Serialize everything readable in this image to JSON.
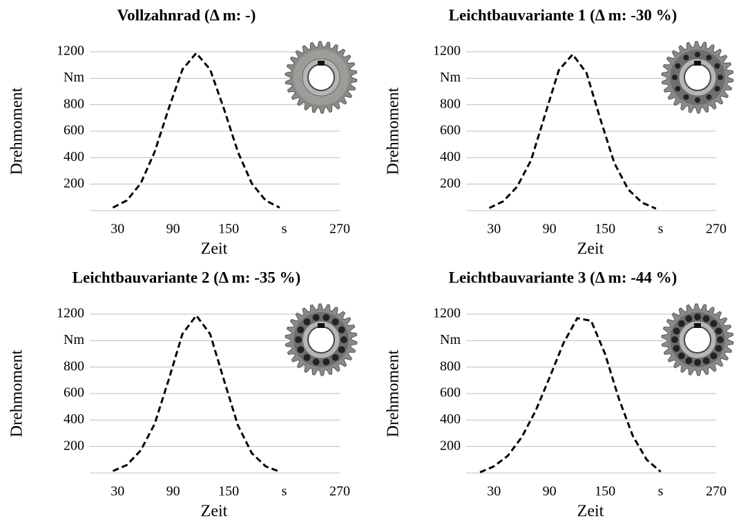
{
  "chart_data": [
    {
      "type": "line",
      "title": "Vollzahnrad (Δ m: -)",
      "xlabel": "Zeit",
      "ylabel": "Drehmoment",
      "xlim": [
        0,
        270
      ],
      "ylim": [
        0,
        1200
      ],
      "xticks": [
        30,
        90,
        150,
        {
          "value": 210,
          "label": "s"
        },
        270
      ],
      "yticks": [
        200,
        400,
        600,
        800,
        {
          "value": 1000,
          "label": "Nm"
        },
        1200
      ],
      "grid": true,
      "color": "#000000",
      "line_style": "dashed",
      "x": [
        25,
        40,
        55,
        70,
        85,
        100,
        115,
        130,
        145,
        160,
        175,
        190,
        205
      ],
      "values": [
        23,
        76,
        205,
        443,
        767,
        1066,
        1190,
        1066,
        767,
        443,
        205,
        76,
        23
      ]
    },
    {
      "type": "line",
      "title": "Leichtbauvariante 1 (Δ m: -30 %)",
      "xlabel": "Zeit",
      "ylabel": "Drehmoment",
      "xlim": [
        0,
        270
      ],
      "ylim": [
        0,
        1200
      ],
      "xticks": [
        30,
        90,
        150,
        {
          "value": 210,
          "label": "s"
        },
        270
      ],
      "yticks": [
        200,
        400,
        600,
        800,
        {
          "value": 1000,
          "label": "Nm"
        },
        1200
      ],
      "grid": true,
      "color": "#000000",
      "line_style": "dashed",
      "x": [
        25,
        40,
        55,
        70,
        85,
        100,
        115,
        130,
        145,
        160,
        175,
        190,
        205
      ],
      "values": [
        20,
        70,
        180,
        380,
        720,
        1060,
        1180,
        1040,
        690,
        360,
        160,
        60,
        15
      ]
    },
    {
      "type": "line",
      "title": "Leichtbauvariante 2 (Δ m: -35 %)",
      "xlabel": "Zeit",
      "ylabel": "Drehmoment",
      "xlim": [
        0,
        270
      ],
      "ylim": [
        0,
        1200
      ],
      "xticks": [
        30,
        90,
        150,
        {
          "value": 210,
          "label": "s"
        },
        270
      ],
      "yticks": [
        200,
        400,
        600,
        800,
        {
          "value": 1000,
          "label": "Nm"
        },
        1200
      ],
      "grid": true,
      "color": "#000000",
      "line_style": "dashed",
      "x": [
        25,
        40,
        55,
        70,
        85,
        100,
        115,
        130,
        145,
        160,
        175,
        190,
        205
      ],
      "values": [
        15,
        60,
        170,
        370,
        700,
        1050,
        1190,
        1050,
        700,
        360,
        150,
        50,
        10
      ]
    },
    {
      "type": "line",
      "title": "Leichtbauvariante 3 (Δ m: -44 %)",
      "xlabel": "Zeit",
      "ylabel": "Drehmoment",
      "xlim": [
        0,
        270
      ],
      "ylim": [
        0,
        1200
      ],
      "xticks": [
        30,
        90,
        150,
        {
          "value": 210,
          "label": "s"
        },
        270
      ],
      "yticks": [
        200,
        400,
        600,
        800,
        {
          "value": 1000,
          "label": "Nm"
        },
        1200
      ],
      "grid": true,
      "color": "#000000",
      "line_style": "dashed",
      "x": [
        15,
        30,
        45,
        60,
        75,
        90,
        105,
        120,
        135,
        150,
        165,
        180,
        195,
        210
      ],
      "values": [
        5,
        50,
        130,
        270,
        470,
        720,
        980,
        1170,
        1150,
        900,
        560,
        280,
        100,
        10
      ]
    }
  ]
}
